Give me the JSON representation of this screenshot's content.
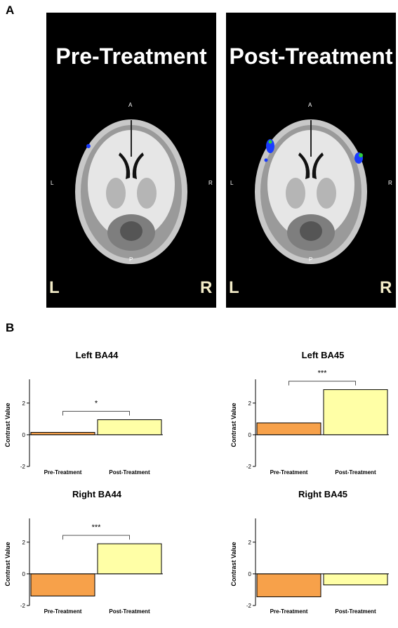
{
  "panel_a": {
    "label": "A",
    "images": [
      {
        "title": "Pre-Treatment",
        "orient": {
          "A": "A",
          "P": "P",
          "L": "L",
          "R": "R"
        },
        "corner_left": "L",
        "corner_right": "R",
        "clusters": "left-small"
      },
      {
        "title": "Post-Treatment",
        "orient": {
          "A": "A",
          "P": "P",
          "L": "L",
          "R": "R"
        },
        "corner_left": "L",
        "corner_right": "R",
        "clusters": "bilateral"
      }
    ]
  },
  "panel_b": {
    "label": "B"
  },
  "colors": {
    "pre": "#f7a14a",
    "post": "#ffffa6",
    "cluster_blue": "#1a3cff",
    "cluster_green": "#2ecc40"
  },
  "chart_data": [
    {
      "type": "bar",
      "title": "Left BA44",
      "categories": [
        "Pre-Treatment",
        "Post-Treatment"
      ],
      "values": [
        0.15,
        0.95
      ],
      "ylabel": "Contrast Value",
      "ylim": [
        -2,
        3.5
      ],
      "yticks": [
        -2,
        0,
        2
      ],
      "significance": "*"
    },
    {
      "type": "bar",
      "title": "Left BA45",
      "categories": [
        "Pre-Treatment",
        "Post-Treatment"
      ],
      "values": [
        0.75,
        2.85
      ],
      "ylabel": "Contrast Value",
      "ylim": [
        -2,
        3.5
      ],
      "yticks": [
        -2,
        0,
        2
      ],
      "significance": "***"
    },
    {
      "type": "bar",
      "title": "Right BA44",
      "categories": [
        "Pre-Treatment",
        "Post-Treatment"
      ],
      "values": [
        -1.4,
        1.9
      ],
      "ylabel": "Contrast Value",
      "ylim": [
        -2,
        3.5
      ],
      "yticks": [
        -2,
        0,
        2
      ],
      "significance": "***"
    },
    {
      "type": "bar",
      "title": "Right BA45",
      "categories": [
        "Pre-Treatment",
        "Post-Treatment"
      ],
      "values": [
        -1.45,
        -0.7
      ],
      "ylabel": "Contrast Value",
      "ylim": [
        -2,
        3.5
      ],
      "yticks": [
        -2,
        0,
        2
      ],
      "significance": ""
    }
  ]
}
